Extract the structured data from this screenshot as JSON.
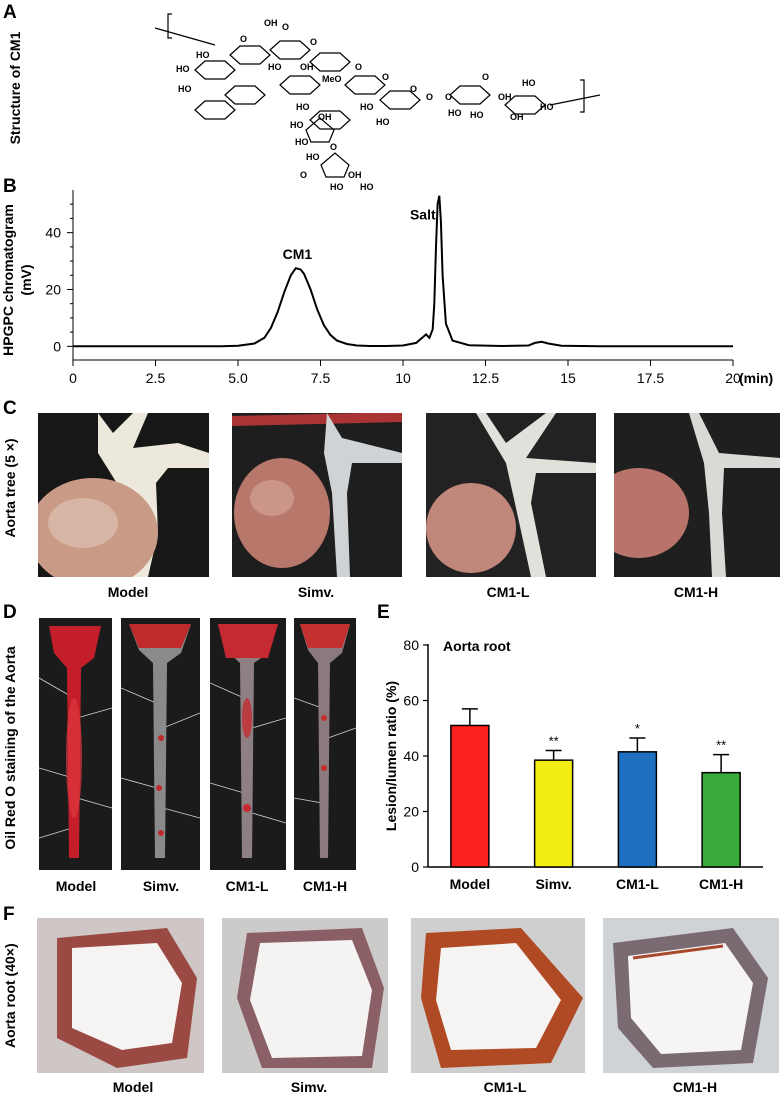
{
  "panels": {
    "A": {
      "letter": "A",
      "ylabel": "Structure of CM1",
      "struct_labels": [
        "HO",
        "OH",
        "O",
        "HO",
        "HO",
        "O",
        "O",
        "HO",
        "OH",
        "MeO",
        "O",
        "O",
        "HO",
        "HO",
        "O",
        "O",
        "O",
        "HO",
        "HO",
        "OH",
        "HO",
        "HO",
        "O",
        "O",
        "OH",
        "HO",
        "HO",
        "O",
        "HO",
        "HO",
        "OH",
        "HO",
        "HO",
        "OH"
      ]
    },
    "B": {
      "letter": "B",
      "ylabel_line1": "HPGPC chromatogram",
      "ylabel_line2": "(mV)",
      "xunit": "(min)",
      "peak1_label": "CM1",
      "peak2_label": "Salt"
    },
    "C": {
      "letter": "C",
      "ylabel": "Aorta tree (5 ×)",
      "captions": [
        "Model",
        "Simv.",
        "CM1-L",
        "CM1-H"
      ]
    },
    "D": {
      "letter": "D",
      "ylabel": "Oil Red O staining of the Aorta",
      "captions": [
        "Model",
        "Simv.",
        "CM1-L",
        "CM1-H"
      ]
    },
    "E": {
      "letter": "E"
    },
    "F": {
      "letter": "F",
      "ylabel": "Aorta root  (40×)",
      "captions": [
        "Model",
        "Simv.",
        "CM1-L",
        "CM1-H"
      ]
    }
  },
  "chart_data": [
    {
      "type": "line",
      "panel": "B",
      "title": "",
      "xlabel": "(min)",
      "ylabel": "HPGPC chromatogram (mV)",
      "xlim": [
        0,
        20
      ],
      "ylim": [
        -2,
        55
      ],
      "xticks": [
        0,
        2.5,
        5.0,
        7.5,
        10,
        12.5,
        15,
        17.5,
        20
      ],
      "xtick_labels": [
        "0",
        "2.5",
        "5.0",
        "7.5",
        "10",
        "12.5",
        "15",
        "17.5",
        "20"
      ],
      "yticks": [
        0,
        20,
        40
      ],
      "ytick_labels": [
        "0",
        "20",
        "40"
      ],
      "series": [
        {
          "x": [
            0,
            4.5,
            5.0,
            5.5,
            5.8,
            6.0,
            6.2,
            6.4,
            6.6,
            6.75,
            6.9,
            7.0,
            7.2,
            7.4,
            7.6,
            7.8,
            8.0,
            8.3,
            8.6,
            9.0,
            9.5,
            10.0,
            10.4,
            10.6,
            10.7,
            10.8,
            10.9,
            10.95,
            11.0,
            11.05,
            11.1,
            11.15,
            11.2,
            11.3,
            11.5,
            12.0,
            13.0,
            13.8,
            14.0,
            14.2,
            14.4,
            14.8,
            16,
            20
          ],
          "y": [
            0,
            0,
            0.2,
            1.0,
            3.0,
            6.5,
            12,
            19,
            25,
            27.5,
            27,
            25.5,
            20,
            13,
            7.5,
            4,
            2,
            0.8,
            0.3,
            0.1,
            0.1,
            0.3,
            1.2,
            3.2,
            4.2,
            3.0,
            6,
            15,
            35,
            50,
            53,
            44,
            25,
            8,
            2,
            0.4,
            0.1,
            0.3,
            1.2,
            1.6,
            1.0,
            0.2,
            0,
            0
          ]
        }
      ],
      "annotations": [
        {
          "text": "CM1",
          "x": 6.8,
          "y": 30
        },
        {
          "text": "Salt",
          "x": 10.6,
          "y": 44
        }
      ],
      "grid": false
    },
    {
      "type": "bar",
      "panel": "E",
      "title": "Aorta root",
      "xlabel": "",
      "ylabel": "Lesion/lumen ratio (%)",
      "ylim": [
        0,
        80
      ],
      "yticks": [
        0,
        20,
        40,
        60,
        80
      ],
      "ytick_labels": [
        "0",
        "20",
        "40",
        "60",
        "80"
      ],
      "categories": [
        "Model",
        "Simv.",
        "CM1-L",
        "CM1-H"
      ],
      "values": [
        51,
        38.5,
        41.5,
        34
      ],
      "errors": [
        6,
        3.5,
        5,
        6.5
      ],
      "significance": [
        "",
        "**",
        "*",
        "**"
      ],
      "colors": [
        "#ff2020",
        "#f2ec12",
        "#1f6fc0",
        "#3aaa3a"
      ],
      "grid": false
    }
  ]
}
